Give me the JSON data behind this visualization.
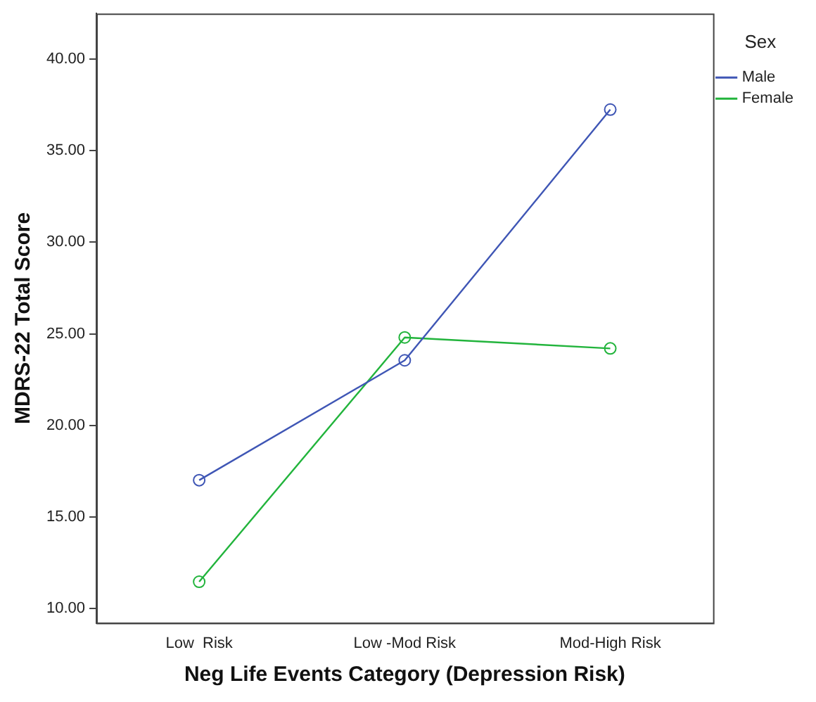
{
  "chart_data": {
    "type": "line",
    "xlabel": "Neg Life Events Category (Depression Risk)",
    "ylabel": "MDRS-22 Total Score",
    "legend_title": "Sex",
    "categories": [
      "Low  Risk",
      "Low -Mod Risk",
      "Mod-High Risk"
    ],
    "series": [
      {
        "name": "Male",
        "color": "#3f56b5",
        "values": [
          17.0,
          23.55,
          37.25
        ]
      },
      {
        "name": "Female",
        "color": "#22b43c",
        "values": [
          11.45,
          24.8,
          24.2
        ]
      }
    ],
    "ylim": [
      9.2,
      42.5
    ],
    "yticks": [
      {
        "value": 10,
        "label": "10.00"
      },
      {
        "value": 15,
        "label": "15.00"
      },
      {
        "value": 20,
        "label": "20.00"
      },
      {
        "value": 25,
        "label": "25.00"
      },
      {
        "value": 30,
        "label": "30.00"
      },
      {
        "value": 35,
        "label": "35.00"
      },
      {
        "value": 40,
        "label": "40.00"
      }
    ],
    "grid": false,
    "legend": "top right",
    "marker": "circle",
    "line_style": "solid"
  }
}
